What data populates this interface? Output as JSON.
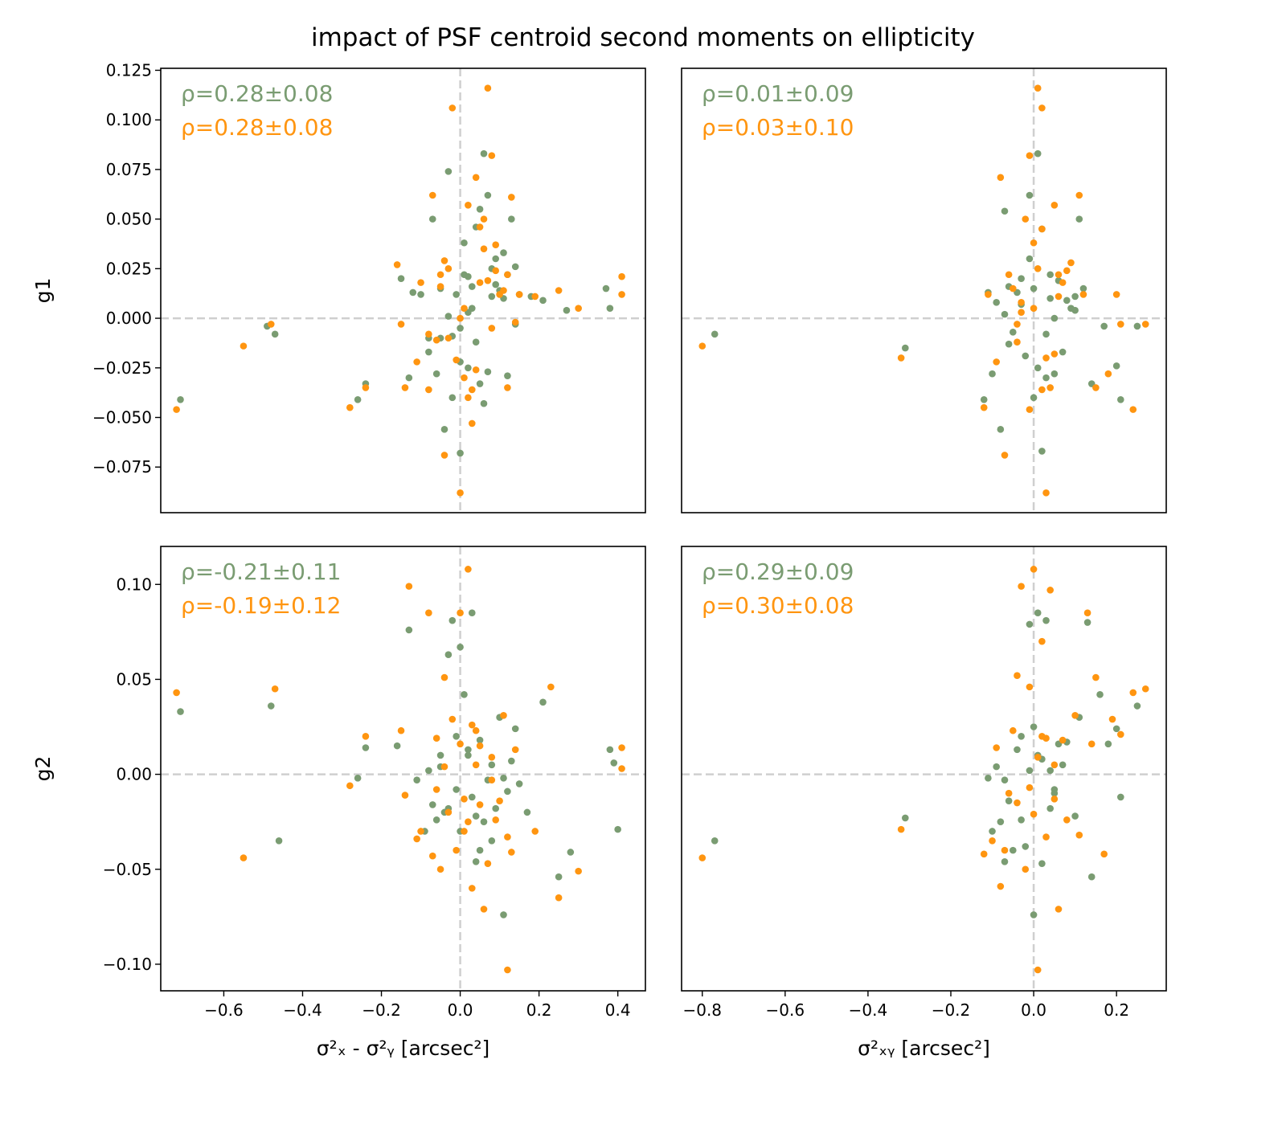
{
  "figure": {
    "title": "impact of PSF centroid second moments on ellipticity",
    "series_colors": {
      "a": "#7a9c72",
      "b": "#ff9510"
    },
    "reference_line_color": "#cfcfcf"
  },
  "chart_data": [
    {
      "type": "scatter",
      "panel": "top-left",
      "xlabel": "",
      "ylabel": "g1",
      "xlim": [
        -0.76,
        0.47
      ],
      "ylim": [
        -0.098,
        0.126
      ],
      "yticks": [
        -0.075,
        -0.05,
        -0.025,
        0.0,
        0.025,
        0.05,
        0.075,
        0.1,
        0.125
      ],
      "ytick_labels": [
        "−0.075",
        "−0.050",
        "−0.025",
        "0.000",
        "0.025",
        "0.050",
        "0.075",
        "0.100",
        "0.125"
      ],
      "xticks": [],
      "xtick_labels": [],
      "annotations": [
        "ρ=0.28±0.08",
        "ρ=0.28±0.08"
      ],
      "series": [
        {
          "color": "#7a9c72",
          "x": [
            -0.71,
            -0.49,
            -0.47,
            -0.26,
            -0.24,
            -0.15,
            -0.13,
            -0.12,
            -0.1,
            -0.08,
            -0.07,
            -0.06,
            -0.05,
            -0.04,
            -0.03,
            -0.02,
            -0.01,
            0.0,
            0.01,
            0.02,
            0.03,
            0.04,
            0.05,
            0.06,
            0.07,
            0.08,
            0.09,
            0.1,
            0.11,
            0.12,
            0.13,
            0.14,
            0.15,
            0.18,
            0.21,
            0.27,
            0.37,
            0.38,
            -0.03,
            0.0,
            0.02,
            0.05,
            0.06,
            0.03,
            0.07,
            0.11,
            0.14,
            -0.08,
            -0.02,
            0.04,
            0.09,
            0.12,
            -0.05,
            0.01,
            0.08,
            0.0,
            0.02
          ],
          "y": [
            -0.041,
            -0.004,
            -0.008,
            -0.041,
            -0.033,
            0.02,
            -0.03,
            0.013,
            0.012,
            -0.017,
            0.05,
            -0.028,
            -0.01,
            -0.056,
            0.001,
            -0.009,
            0.012,
            -0.068,
            0.022,
            0.021,
            0.016,
            0.046,
            0.055,
            0.083,
            0.062,
            0.025,
            0.017,
            0.014,
            0.033,
            -0.029,
            0.05,
            -0.003,
            0.012,
            0.011,
            0.009,
            0.004,
            0.015,
            0.005,
            0.074,
            -0.022,
            -0.025,
            -0.033,
            -0.043,
            0.005,
            -0.027,
            0.01,
            0.026,
            -0.01,
            -0.04,
            -0.012,
            0.03,
            0.022,
            0.015,
            0.038,
            0.011,
            -0.005,
            0.003
          ]
        },
        {
          "color": "#ff9510",
          "x": [
            -0.72,
            -0.55,
            -0.48,
            -0.28,
            -0.24,
            -0.16,
            -0.15,
            -0.14,
            -0.11,
            -0.1,
            -0.08,
            -0.07,
            -0.06,
            -0.05,
            -0.04,
            -0.03,
            -0.02,
            -0.01,
            0.0,
            0.01,
            0.02,
            0.03,
            0.04,
            0.05,
            0.06,
            0.07,
            0.08,
            0.09,
            0.1,
            0.11,
            0.12,
            0.13,
            0.15,
            0.19,
            0.25,
            0.3,
            0.41,
            0.41,
            0.07,
            -0.03,
            0.03,
            0.04,
            0.05,
            0.08,
            0.14,
            0.12,
            -0.08,
            -0.04,
            0.01,
            0.02,
            -0.05,
            0.06,
            0.0,
            0.09
          ],
          "y": [
            -0.046,
            -0.014,
            -0.003,
            -0.045,
            -0.035,
            0.027,
            -0.003,
            -0.035,
            -0.022,
            0.018,
            -0.036,
            0.062,
            -0.011,
            0.022,
            -0.069,
            0.025,
            0.106,
            -0.021,
            -0.088,
            0.005,
            0.057,
            -0.036,
            0.071,
            0.046,
            0.05,
            0.116,
            0.082,
            0.037,
            0.012,
            0.014,
            -0.035,
            0.061,
            0.012,
            0.011,
            0.014,
            0.005,
            0.021,
            0.012,
            0.019,
            -0.01,
            -0.053,
            -0.026,
            0.018,
            -0.005,
            -0.002,
            0.022,
            -0.008,
            0.029,
            -0.03,
            -0.04,
            0.016,
            0.035,
            0.0,
            0.024
          ]
        }
      ]
    },
    {
      "type": "scatter",
      "panel": "top-right",
      "xlabel": "",
      "ylabel": "",
      "xlim": [
        -0.85,
        0.32
      ],
      "ylim": [
        -0.098,
        0.126
      ],
      "yticks": [],
      "ytick_labels": [],
      "xticks": [],
      "xtick_labels": [],
      "annotations": [
        "ρ=0.01±0.09",
        "ρ=0.03±0.10"
      ],
      "series": [
        {
          "color": "#7a9c72",
          "x": [
            -0.77,
            -0.31,
            -0.12,
            -0.11,
            -0.1,
            -0.09,
            -0.08,
            -0.07,
            -0.06,
            -0.05,
            -0.04,
            -0.03,
            -0.02,
            -0.01,
            0.0,
            0.01,
            0.02,
            0.03,
            0.04,
            0.05,
            0.06,
            0.07,
            0.08,
            0.09,
            0.1,
            0.11,
            0.12,
            0.14,
            0.17,
            0.2,
            0.21,
            0.25,
            -0.07,
            0.0,
            0.02,
            -0.03,
            0.01,
            0.05,
            -0.01,
            0.03,
            0.1,
            -0.06,
            0.04
          ],
          "y": [
            -0.008,
            -0.015,
            -0.041,
            0.013,
            -0.028,
            0.008,
            -0.056,
            0.054,
            -0.013,
            -0.007,
            0.013,
            0.02,
            -0.019,
            0.062,
            0.015,
            0.083,
            -0.067,
            -0.03,
            0.022,
            -0.028,
            0.019,
            -0.017,
            0.009,
            0.005,
            0.011,
            0.05,
            0.015,
            -0.033,
            -0.004,
            -0.024,
            -0.041,
            -0.004,
            0.002,
            -0.04,
            0.045,
            0.007,
            -0.025,
            0.0,
            0.03,
            -0.008,
            0.004,
            0.016,
            0.01
          ]
        },
        {
          "color": "#ff9510",
          "x": [
            -0.8,
            -0.32,
            -0.12,
            -0.11,
            -0.09,
            -0.08,
            -0.07,
            -0.06,
            -0.05,
            -0.04,
            -0.03,
            -0.02,
            -0.01,
            0.0,
            0.01,
            0.02,
            0.03,
            0.04,
            0.05,
            0.06,
            0.07,
            0.08,
            0.09,
            0.11,
            0.12,
            0.15,
            0.18,
            0.2,
            0.21,
            0.24,
            0.27,
            -0.04,
            0.0,
            0.02,
            -0.01,
            0.01,
            0.03,
            0.05,
            -0.03,
            0.02,
            0.06
          ],
          "y": [
            -0.014,
            -0.02,
            -0.045,
            0.012,
            -0.022,
            0.071,
            -0.069,
            0.022,
            0.015,
            -0.012,
            0.008,
            0.05,
            0.082,
            0.038,
            0.116,
            0.106,
            -0.088,
            -0.035,
            0.057,
            0.011,
            0.018,
            0.024,
            0.028,
            0.062,
            0.012,
            -0.035,
            -0.028,
            0.012,
            -0.003,
            -0.046,
            -0.003,
            -0.003,
            0.005,
            -0.036,
            -0.046,
            0.025,
            -0.02,
            -0.018,
            0.003,
            0.045,
            0.022
          ]
        }
      ]
    },
    {
      "type": "scatter",
      "panel": "bottom-left",
      "xlabel": "σ²ₓ - σ²ᵧ [arcsec²]",
      "ylabel": "g2",
      "xlim": [
        -0.76,
        0.47
      ],
      "ylim": [
        -0.114,
        0.12
      ],
      "yticks": [
        -0.1,
        -0.05,
        0.0,
        0.05,
        0.1
      ],
      "ytick_labels": [
        "−0.10",
        "−0.05",
        "0.00",
        "0.05",
        "0.10"
      ],
      "xticks": [
        -0.6,
        -0.4,
        -0.2,
        0.0,
        0.2,
        0.4
      ],
      "xtick_labels": [
        "−0.6",
        "−0.4",
        "−0.2",
        "0.0",
        "0.2",
        "0.4"
      ],
      "annotations": [
        "ρ=-0.21±0.11",
        "ρ=-0.19±0.12"
      ],
      "series": [
        {
          "color": "#7a9c72",
          "x": [
            -0.71,
            -0.48,
            -0.46,
            -0.26,
            -0.24,
            -0.16,
            -0.13,
            -0.11,
            -0.09,
            -0.08,
            -0.07,
            -0.06,
            -0.05,
            -0.04,
            -0.03,
            -0.02,
            -0.01,
            0.0,
            0.01,
            0.02,
            0.03,
            0.04,
            0.05,
            0.06,
            0.07,
            0.08,
            0.09,
            0.1,
            0.11,
            0.12,
            0.13,
            0.14,
            0.15,
            0.17,
            0.21,
            0.25,
            0.28,
            0.38,
            0.39,
            0.4,
            -0.03,
            0.0,
            0.02,
            0.05,
            -0.05,
            0.03,
            0.08,
            0.11,
            -0.01,
            0.04
          ],
          "y": [
            0.033,
            0.036,
            -0.035,
            -0.002,
            0.014,
            0.015,
            0.076,
            -0.003,
            -0.03,
            0.002,
            -0.016,
            -0.024,
            0.01,
            -0.02,
            0.063,
            0.081,
            0.02,
            0.067,
            0.042,
            0.013,
            0.085,
            -0.046,
            -0.04,
            -0.025,
            -0.003,
            0.005,
            -0.018,
            0.03,
            -0.074,
            -0.009,
            0.007,
            0.024,
            -0.005,
            -0.02,
            0.038,
            -0.054,
            -0.041,
            0.013,
            0.006,
            -0.029,
            -0.018,
            -0.03,
            0.01,
            0.018,
            0.004,
            -0.012,
            -0.035,
            -0.002,
            -0.008,
            -0.022
          ]
        },
        {
          "color": "#ff9510",
          "x": [
            -0.72,
            -0.55,
            -0.47,
            -0.28,
            -0.24,
            -0.15,
            -0.14,
            -0.13,
            -0.11,
            -0.1,
            -0.08,
            -0.07,
            -0.06,
            -0.05,
            -0.04,
            -0.03,
            -0.02,
            -0.01,
            0.0,
            0.01,
            0.02,
            0.03,
            0.04,
            0.05,
            0.06,
            0.07,
            0.08,
            0.09,
            0.1,
            0.11,
            0.12,
            0.13,
            0.14,
            0.19,
            0.23,
            0.25,
            0.3,
            0.41,
            0.41,
            -0.04,
            0.01,
            0.03,
            -0.06,
            0.05,
            0.08,
            0.12,
            0.0,
            0.02,
            0.04
          ],
          "y": [
            0.043,
            -0.044,
            0.045,
            -0.006,
            0.02,
            0.023,
            -0.011,
            0.099,
            -0.034,
            -0.03,
            0.085,
            -0.043,
            0.019,
            -0.05,
            0.051,
            -0.02,
            0.029,
            -0.04,
            0.085,
            -0.013,
            0.108,
            -0.06,
            0.023,
            0.015,
            -0.071,
            -0.047,
            0.009,
            -0.024,
            -0.014,
            0.031,
            -0.103,
            -0.041,
            0.013,
            -0.03,
            0.046,
            -0.065,
            -0.051,
            0.014,
            0.003,
            0.004,
            -0.03,
            0.026,
            -0.008,
            -0.016,
            -0.003,
            -0.033,
            0.016,
            -0.025,
            0.005
          ]
        }
      ]
    },
    {
      "type": "scatter",
      "panel": "bottom-right",
      "xlabel": "σ²ₓᵧ  [arcsec²]",
      "ylabel": "",
      "xlim": [
        -0.85,
        0.32
      ],
      "ylim": [
        -0.114,
        0.12
      ],
      "yticks": [],
      "ytick_labels": [],
      "xticks": [
        -0.8,
        -0.6,
        -0.4,
        -0.2,
        0.0,
        0.2
      ],
      "xtick_labels": [
        "−0.8",
        "−0.6",
        "−0.4",
        "−0.2",
        "0.0",
        "0.2"
      ],
      "annotations": [
        "ρ=0.29±0.09",
        "ρ=0.30±0.08"
      ],
      "series": [
        {
          "color": "#7a9c72",
          "x": [
            -0.77,
            -0.31,
            -0.11,
            -0.1,
            -0.09,
            -0.08,
            -0.07,
            -0.06,
            -0.05,
            -0.04,
            -0.03,
            -0.02,
            -0.01,
            0.0,
            0.01,
            0.02,
            0.03,
            0.04,
            0.05,
            0.06,
            0.07,
            0.08,
            0.1,
            0.11,
            0.13,
            0.14,
            0.16,
            0.18,
            0.2,
            0.21,
            0.25,
            -0.07,
            0.0,
            0.02,
            -0.03,
            0.01,
            0.04,
            -0.01,
            0.05
          ],
          "y": [
            -0.035,
            -0.023,
            -0.002,
            -0.03,
            0.004,
            -0.025,
            -0.046,
            -0.014,
            -0.04,
            0.013,
            0.02,
            -0.038,
            0.079,
            -0.074,
            0.085,
            -0.047,
            0.081,
            0.002,
            -0.01,
            0.016,
            0.005,
            0.017,
            -0.022,
            0.03,
            0.08,
            -0.054,
            0.042,
            0.016,
            0.024,
            -0.012,
            0.036,
            -0.003,
            0.025,
            0.008,
            -0.024,
            0.01,
            -0.018,
            0.002,
            -0.008
          ]
        },
        {
          "color": "#ff9510",
          "x": [
            -0.8,
            -0.32,
            -0.12,
            -0.1,
            -0.09,
            -0.08,
            -0.07,
            -0.06,
            -0.05,
            -0.04,
            -0.03,
            -0.02,
            -0.01,
            0.0,
            0.01,
            0.02,
            0.03,
            0.04,
            0.05,
            0.06,
            0.07,
            0.08,
            0.1,
            0.11,
            0.13,
            0.14,
            0.15,
            0.17,
            0.19,
            0.21,
            0.24,
            0.27,
            -0.04,
            0.01,
            0.03,
            -0.01,
            0.02,
            0.0,
            0.05
          ],
          "y": [
            -0.044,
            -0.029,
            -0.042,
            -0.035,
            0.014,
            -0.059,
            -0.04,
            -0.01,
            0.023,
            0.052,
            0.099,
            -0.05,
            0.046,
            0.108,
            -0.103,
            0.07,
            0.019,
            0.097,
            -0.013,
            -0.071,
            0.018,
            -0.024,
            0.031,
            -0.032,
            0.085,
            0.016,
            0.051,
            -0.042,
            0.029,
            0.021,
            0.043,
            0.045,
            -0.015,
            0.009,
            -0.033,
            -0.007,
            0.02,
            -0.021,
            0.005
          ]
        }
      ]
    }
  ]
}
